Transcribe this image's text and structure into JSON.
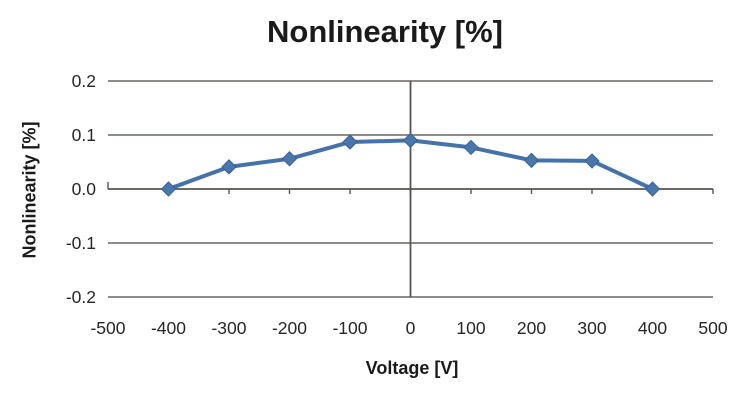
{
  "chart_data": {
    "type": "line",
    "title": "Nonlinearity [%]",
    "xlabel": "Voltage [V]",
    "ylabel": "Nonlinearity [%]",
    "series": [
      {
        "name": "Nonlinearity",
        "x": [
          -400,
          -300,
          -200,
          -100,
          0,
          100,
          200,
          300,
          400
        ],
        "y": [
          0.0,
          0.041,
          0.056,
          0.087,
          0.09,
          0.077,
          0.053,
          0.052,
          0.0
        ]
      }
    ],
    "xlim": [
      -500,
      500
    ],
    "ylim": [
      -0.2,
      0.2
    ],
    "xticks": [
      -500,
      -400,
      -300,
      -200,
      -100,
      0,
      100,
      200,
      300,
      400,
      500
    ],
    "yticks": [
      0.2,
      0.1,
      0.0,
      -0.1,
      -0.2
    ],
    "grid": "horizontal",
    "legend_position": "none",
    "marker": "diamond",
    "colors": {
      "line": "#4573A9",
      "marker_fill": "#4976AD",
      "marker_stroke": "#3A6191",
      "grid": "#6A6560",
      "axis": "#57534E",
      "tick_text": "#262626",
      "title_text": "#1a1a1a",
      "background": "#ffffff"
    }
  }
}
